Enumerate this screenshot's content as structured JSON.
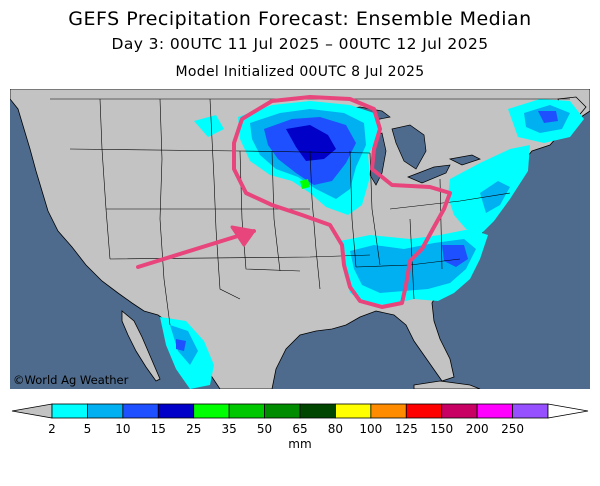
{
  "header": {
    "title": "GEFS Precipitation Forecast: Ensemble Median",
    "subtitle": "Day 3: 00UTC 11 Jul 2025 – 00UTC 12 Jul 2025",
    "init": "Model Initialized 00UTC 8 Jul 2025"
  },
  "map": {
    "credit": "©World Ag Weather",
    "colors": {
      "ocean": "#4e6a8c",
      "land": "#c3c3c3",
      "annotation": "#e8457c"
    }
  },
  "legend": {
    "unit": "mm",
    "ticks": [
      "2",
      "5",
      "10",
      "15",
      "25",
      "35",
      "50",
      "65",
      "80",
      "100",
      "125",
      "150",
      "200",
      "250"
    ],
    "colors": [
      "#00ffff",
      "#00b0f0",
      "#1e50ff",
      "#0000c8",
      "#00ff00",
      "#00c800",
      "#008c00",
      "#004600",
      "#ffff00",
      "#ff8c00",
      "#ff0000",
      "#c80064",
      "#ff00ff",
      "#9650ff"
    ]
  }
}
